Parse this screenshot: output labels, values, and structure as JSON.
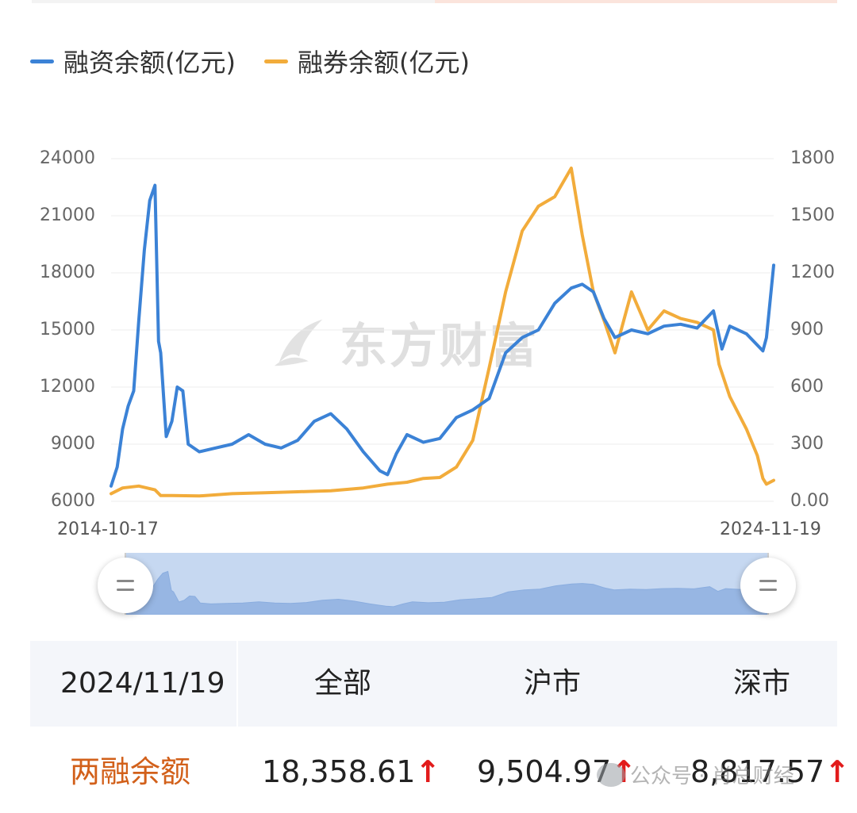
{
  "legend": [
    {
      "label": "融资余额(亿元)",
      "color": "#3b82d6"
    },
    {
      "label": "融券余额(亿元)",
      "color": "#f2ac3b"
    }
  ],
  "watermark": {
    "text": "东方财富",
    "icon": "dongfang-logo-icon"
  },
  "footer_watermark": {
    "text": "公众号 · 肖总财经",
    "icon": "wechat-icon"
  },
  "table": {
    "date": "2024/11/19",
    "columns": [
      "全部",
      "沪市",
      "深市"
    ],
    "row_label": "两融余额",
    "values": [
      "18,358.61",
      "9,504.97",
      "8,817.57"
    ],
    "arrow": "↑"
  },
  "chart_data": {
    "type": "line",
    "title": "",
    "x_start_label": "2014-10-17",
    "x_end_label": "2024-11-19",
    "x_range": [
      "2014-10-17",
      "2024-11-19"
    ],
    "y_left": {
      "label": "",
      "ylim": [
        6000,
        24000
      ],
      "ticks": [
        "24000",
        "21000",
        "18000",
        "15000",
        "12000",
        "9000",
        "6000"
      ]
    },
    "y_right": {
      "label": "",
      "ylim": [
        0,
        1800
      ],
      "ticks": [
        "1800",
        "1500",
        "1200",
        "900",
        "600",
        "300",
        "0.00"
      ]
    },
    "grid": true,
    "legend_position": "top-left",
    "series": [
      {
        "name": "融资余额(亿元)",
        "axis": "left",
        "color": "#3b82d6",
        "x": [
          "2014-10-17",
          "2014-11-20",
          "2014-12-20",
          "2015-01-20",
          "2015-02-20",
          "2015-03-20",
          "2015-04-20",
          "2015-05-20",
          "2015-06-18",
          "2015-07-08",
          "2015-07-20",
          "2015-08-20",
          "2015-09-20",
          "2015-10-20",
          "2015-11-20",
          "2015-12-20",
          "2016-02-20",
          "2016-05-20",
          "2016-08-20",
          "2016-11-20",
          "2017-02-20",
          "2017-05-20",
          "2017-08-20",
          "2017-11-20",
          "2018-02-20",
          "2018-05-20",
          "2018-08-20",
          "2018-11-20",
          "2019-01-02",
          "2019-02-20",
          "2019-04-20",
          "2019-07-20",
          "2019-10-20",
          "2020-01-20",
          "2020-04-20",
          "2020-07-20",
          "2020-10-20",
          "2021-01-20",
          "2021-04-20",
          "2021-07-20",
          "2021-10-20",
          "2021-12-20",
          "2022-02-20",
          "2022-04-20",
          "2022-06-20",
          "2022-09-20",
          "2022-12-20",
          "2023-03-20",
          "2023-06-20",
          "2023-09-20",
          "2023-12-20",
          "2024-02-05",
          "2024-03-20",
          "2024-06-20",
          "2024-09-20",
          "2024-10-10",
          "2024-11-19"
        ],
        "y": [
          6800,
          7800,
          9800,
          11000,
          11800,
          15500,
          19200,
          21800,
          22600,
          14400,
          13800,
          9400,
          10200,
          12000,
          11800,
          9000,
          8600,
          8800,
          9000,
          9500,
          9000,
          8800,
          9200,
          10200,
          10600,
          9800,
          8600,
          7600,
          7400,
          8500,
          9500,
          9100,
          9300,
          10400,
          10800,
          11400,
          13800,
          14600,
          15000,
          16400,
          17200,
          17400,
          17000,
          15600,
          14600,
          15000,
          14800,
          15200,
          15300,
          15100,
          16000,
          14000,
          15200,
          14800,
          13900,
          14600,
          18400
        ]
      },
      {
        "name": "融券余额(亿元)",
        "axis": "right",
        "color": "#f2ac3b",
        "x": [
          "2014-10-17",
          "2014-12-20",
          "2015-03-20",
          "2015-06-18",
          "2015-07-20",
          "2015-09-20",
          "2016-02-20",
          "2016-08-20",
          "2017-02-20",
          "2017-08-20",
          "2018-02-20",
          "2018-08-20",
          "2019-01-02",
          "2019-04-20",
          "2019-07-20",
          "2019-10-20",
          "2020-01-20",
          "2020-04-20",
          "2020-07-20",
          "2020-10-20",
          "2021-01-20",
          "2021-04-20",
          "2021-07-20",
          "2021-10-20",
          "2021-12-20",
          "2022-02-20",
          "2022-04-20",
          "2022-06-20",
          "2022-09-20",
          "2022-12-20",
          "2023-03-20",
          "2023-06-20",
          "2023-09-20",
          "2023-12-20",
          "2024-01-20",
          "2024-03-20",
          "2024-06-20",
          "2024-08-20",
          "2024-09-20",
          "2024-10-10",
          "2024-11-19"
        ],
        "y": [
          40,
          70,
          80,
          60,
          30,
          30,
          28,
          40,
          45,
          50,
          55,
          70,
          90,
          100,
          120,
          125,
          180,
          320,
          700,
          1100,
          1420,
          1550,
          1600,
          1750,
          1400,
          1100,
          950,
          780,
          1100,
          900,
          1000,
          960,
          940,
          900,
          720,
          550,
          380,
          240,
          120,
          90,
          110
        ]
      }
    ]
  }
}
